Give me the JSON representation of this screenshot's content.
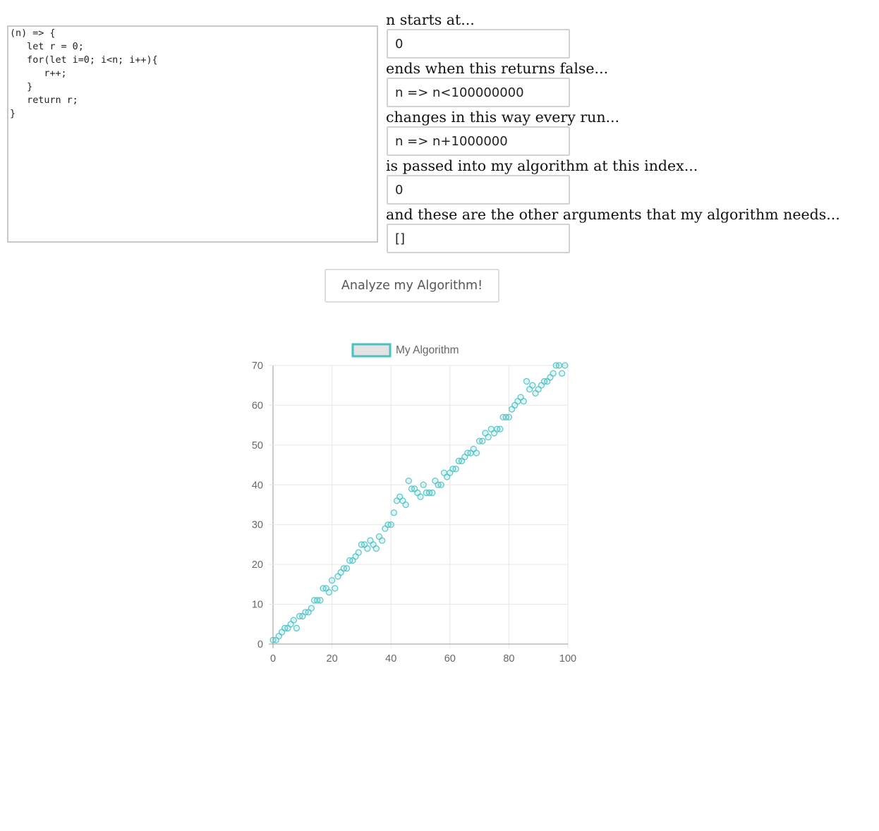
{
  "editor": {
    "code": "(n) => {\n   let r = 0;\n   for(let i=0; i<n; i++){\n      r++;\n   }\n   return r;\n}"
  },
  "form": {
    "start_label": "n starts at...",
    "start_value": "0",
    "end_label": "ends when this returns false...",
    "end_value": "n => n<100000000",
    "step_label": "changes in this way every run...",
    "step_value": "n => n+1000000",
    "index_label": "is passed into my algorithm at this index...",
    "index_value": "0",
    "args_label": "and these are the other arguments that my algorithm needs...",
    "args_value": "[]"
  },
  "analyze_button": {
    "label": "Analyze my Algorithm!"
  },
  "chart_data": {
    "type": "scatter",
    "series": [
      {
        "name": "My Algorithm",
        "color": "#4bc0c0",
        "x": [
          0,
          1,
          2,
          3,
          4,
          5,
          6,
          7,
          8,
          9,
          10,
          11,
          12,
          13,
          14,
          15,
          16,
          17,
          18,
          19,
          20,
          21,
          22,
          23,
          24,
          25,
          26,
          27,
          28,
          29,
          30,
          31,
          32,
          33,
          34,
          35,
          36,
          37,
          38,
          39,
          40,
          41,
          42,
          43,
          44,
          45,
          46,
          47,
          48,
          49,
          50,
          51,
          52,
          53,
          54,
          55,
          56,
          57,
          58,
          59,
          60,
          61,
          62,
          63,
          64,
          65,
          66,
          67,
          68,
          69,
          70,
          71,
          72,
          73,
          74,
          75,
          76,
          77,
          78,
          79,
          80,
          81,
          82,
          83,
          84,
          85,
          86,
          87,
          88,
          89,
          90,
          91,
          92,
          93,
          94,
          95,
          96,
          97,
          98,
          99
        ],
        "y": [
          1,
          1,
          2,
          3,
          4,
          4,
          5,
          6,
          4,
          7,
          7,
          8,
          8,
          9,
          11,
          11,
          11,
          14,
          14,
          13,
          16,
          14,
          17,
          18,
          19,
          19,
          21,
          21,
          22,
          23,
          25,
          25,
          24,
          26,
          25,
          24,
          27,
          26,
          29,
          30,
          30,
          33,
          36,
          37,
          36,
          35,
          41,
          39,
          39,
          38,
          37,
          40,
          38,
          38,
          38,
          41,
          40,
          40,
          43,
          42,
          43,
          44,
          44,
          46,
          46,
          47,
          48,
          48,
          49,
          48,
          51,
          51,
          53,
          52,
          54,
          53,
          54,
          54,
          57,
          57,
          57,
          59,
          60,
          61,
          62,
          61,
          66,
          64,
          65,
          63,
          64,
          65,
          66,
          66,
          67,
          68,
          70,
          70,
          68,
          70
        ]
      }
    ],
    "xlim": [
      0,
      100
    ],
    "ylim": [
      0,
      70
    ],
    "xticks": [
      0,
      20,
      40,
      60,
      80,
      100
    ],
    "yticks": [
      0,
      10,
      20,
      30,
      40,
      50,
      60,
      70
    ],
    "grid": true,
    "legend": "top"
  }
}
